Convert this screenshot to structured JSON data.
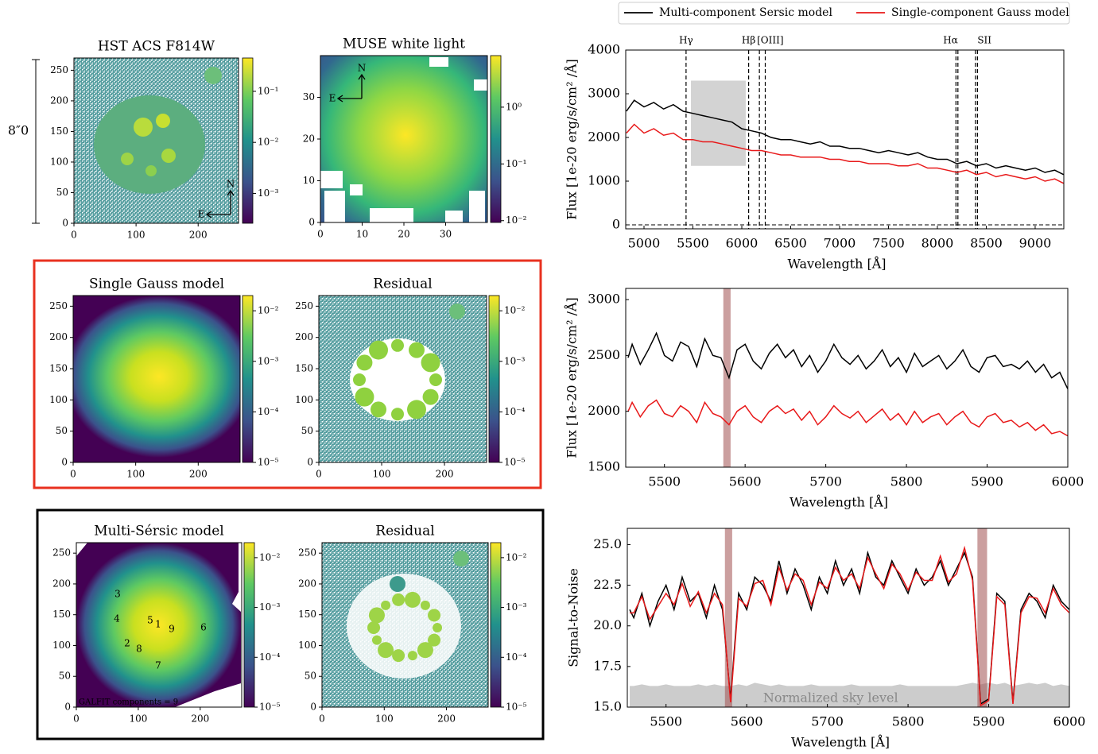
{
  "chart_data": [
    {
      "type": "image",
      "title": "HST ACS F814W",
      "xlim": [
        0,
        265
      ],
      "ylim": [
        0,
        270
      ],
      "xticks": [
        0,
        100,
        200
      ],
      "yticks": [
        0,
        50,
        100,
        150,
        200,
        250
      ],
      "clim": [
        0.00026,
        0.45
      ],
      "log_colorbar": true,
      "cticks": [
        {
          "value": 0.1,
          "label": "10⁻¹"
        },
        {
          "value": 0.01,
          "label": "10⁻²"
        },
        {
          "value": 0.001,
          "label": "10⁻³"
        }
      ],
      "compass": [
        "N",
        "E"
      ],
      "scale_label": "8″0"
    },
    {
      "type": "image",
      "title": "MUSE white light",
      "xlim": [
        0,
        40
      ],
      "ylim": [
        0,
        40
      ],
      "xticks": [
        0,
        10,
        20,
        30
      ],
      "yticks": [
        0,
        10,
        20,
        30
      ],
      "clim": [
        0.0093,
        8.1
      ],
      "log_colorbar": true,
      "cticks": [
        {
          "value": 1,
          "label": "10⁰"
        },
        {
          "value": 0.1,
          "label": "10⁻¹"
        },
        {
          "value": 0.01,
          "label": "10⁻²"
        }
      ],
      "compass": [
        "N",
        "E"
      ]
    },
    {
      "type": "image",
      "title": "Single Gauss model",
      "xlim": [
        0,
        267
      ],
      "ylim": [
        0,
        267
      ],
      "xticks": [
        0,
        100,
        200
      ],
      "yticks": [
        0,
        50,
        100,
        150,
        200,
        250
      ],
      "clim": [
        1e-05,
        0.02
      ],
      "log_colorbar": true,
      "cticks": [
        {
          "value": 0.01,
          "label": "10⁻²"
        },
        {
          "value": 0.001,
          "label": "10⁻³"
        },
        {
          "value": 0.0001,
          "label": "10⁻⁴"
        },
        {
          "value": 1e-05,
          "label": "10⁻⁵"
        }
      ]
    },
    {
      "type": "image",
      "title": "Residual",
      "xlim": [
        0,
        267
      ],
      "ylim": [
        0,
        267
      ],
      "xticks": [
        0,
        100,
        200
      ],
      "yticks": [
        0,
        50,
        100,
        150,
        200,
        250
      ],
      "clim": [
        1e-05,
        0.02
      ],
      "log_colorbar": true,
      "cticks": [
        {
          "value": 0.01,
          "label": "10⁻²"
        },
        {
          "value": 0.001,
          "label": "10⁻³"
        },
        {
          "value": 0.0001,
          "label": "10⁻⁴"
        },
        {
          "value": 1e-05,
          "label": "10⁻⁵"
        }
      ]
    },
    {
      "type": "image",
      "title": "Multi-Sérsic model",
      "xlim": [
        0,
        267
      ],
      "ylim": [
        0,
        267
      ],
      "xticks": [
        0,
        100,
        200
      ],
      "yticks": [
        0,
        50,
        100,
        150,
        200,
        250
      ],
      "clim": [
        1e-05,
        0.02
      ],
      "log_colorbar": true,
      "cticks": [
        {
          "value": 0.01,
          "label": "10⁻²"
        },
        {
          "value": 0.001,
          "label": "10⁻³"
        },
        {
          "value": 0.0001,
          "label": "10⁻⁴"
        },
        {
          "value": 1e-05,
          "label": "10⁻⁵"
        }
      ],
      "components": [
        "1",
        "2",
        "3",
        "4",
        "5",
        "6",
        "7",
        "8",
        "9"
      ],
      "note": "GALFIT components = 9"
    },
    {
      "type": "image",
      "title": "Residual",
      "xlim": [
        0,
        267
      ],
      "ylim": [
        0,
        267
      ],
      "xticks": [
        0,
        100,
        200
      ],
      "yticks": [
        0,
        50,
        100,
        150,
        200,
        250
      ],
      "clim": [
        1e-05,
        0.02
      ],
      "log_colorbar": true,
      "cticks": [
        {
          "value": 0.01,
          "label": "10⁻²"
        },
        {
          "value": 0.001,
          "label": "10⁻³"
        },
        {
          "value": 0.0001,
          "label": "10⁻⁴"
        },
        {
          "value": 1e-05,
          "label": "10⁻⁵"
        }
      ]
    },
    {
      "type": "line",
      "xlabel": "Wavelength [Å]",
      "ylabel": "Flux [1e-20 erg/s/cm² /Å]",
      "legend": "top",
      "xlim": [
        4813,
        9293
      ],
      "ylim": [
        -91,
        4000
      ],
      "xticks": [
        5000,
        5500,
        6000,
        6500,
        7000,
        7500,
        8000,
        8500,
        9000
      ],
      "yticks": [
        0,
        1000,
        2000,
        3000,
        4000
      ],
      "zoom_region": {
        "xlim": [
          5480,
          6040
        ],
        "ylim": [
          1350,
          3300
        ]
      },
      "lines": [
        {
          "label": "Hγ",
          "x": [
            5430
          ]
        },
        {
          "label": "Hβ",
          "x": [
            6070
          ]
        },
        {
          "label": "[OIII]",
          "x": [
            6180,
            6240
          ]
        },
        {
          "label": "Hα",
          "x": [
            8190,
            8210
          ]
        },
        {
          "label": "SII",
          "x": [
            8390,
            8410
          ]
        }
      ],
      "x": [
        4820,
        4900,
        5000,
        5100,
        5200,
        5300,
        5400,
        5500,
        5600,
        5700,
        5800,
        5900,
        6000,
        6100,
        6200,
        6300,
        6400,
        6500,
        6600,
        6700,
        6800,
        6900,
        7000,
        7100,
        7200,
        7300,
        7400,
        7500,
        7600,
        7700,
        7800,
        7900,
        8000,
        8100,
        8200,
        8300,
        8400,
        8500,
        8600,
        8700,
        8800,
        8900,
        9000,
        9100,
        9200,
        9290
      ],
      "series": [
        {
          "name": "Multi-component Sersic model",
          "color": "#000000",
          "values": [
            2600,
            2850,
            2700,
            2800,
            2650,
            2750,
            2600,
            2550,
            2500,
            2450,
            2400,
            2350,
            2200,
            2150,
            2100,
            2000,
            1950,
            1950,
            1900,
            1850,
            1900,
            1800,
            1800,
            1750,
            1750,
            1700,
            1650,
            1700,
            1650,
            1600,
            1650,
            1550,
            1500,
            1500,
            1400,
            1450,
            1350,
            1400,
            1300,
            1350,
            1300,
            1250,
            1300,
            1200,
            1250,
            1150
          ]
        },
        {
          "name": "Single-component Gauss model",
          "color": "#e8191a",
          "values": [
            2100,
            2300,
            2100,
            2200,
            2050,
            2100,
            1950,
            1950,
            1900,
            1900,
            1850,
            1800,
            1750,
            1700,
            1700,
            1650,
            1600,
            1600,
            1550,
            1550,
            1550,
            1500,
            1500,
            1450,
            1450,
            1400,
            1400,
            1400,
            1350,
            1350,
            1400,
            1300,
            1300,
            1250,
            1200,
            1250,
            1150,
            1200,
            1100,
            1150,
            1100,
            1050,
            1100,
            1000,
            1050,
            950
          ]
        }
      ]
    },
    {
      "type": "line",
      "xlabel": "Wavelength [Å]",
      "ylabel": "Flux [1e-20 erg/s/cm² /Å]",
      "xlim": [
        5452,
        6000
      ],
      "ylim": [
        1500,
        3100
      ],
      "xticks": [
        5500,
        5600,
        5700,
        5800,
        5900,
        6000
      ],
      "yticks": [
        1500,
        2000,
        2500,
        3000
      ],
      "masked": [
        [
          5573,
          5582
        ]
      ],
      "x": [
        5455,
        5460,
        5470,
        5480,
        5490,
        5500,
        5510,
        5520,
        5530,
        5540,
        5550,
        5560,
        5570,
        5580,
        5590,
        5600,
        5610,
        5620,
        5630,
        5640,
        5650,
        5660,
        5670,
        5680,
        5690,
        5700,
        5710,
        5720,
        5730,
        5740,
        5750,
        5760,
        5770,
        5780,
        5790,
        5800,
        5810,
        5820,
        5830,
        5840,
        5850,
        5860,
        5870,
        5880,
        5890,
        5900,
        5910,
        5920,
        5930,
        5940,
        5950,
        5960,
        5970,
        5980,
        5990,
        6000
      ],
      "series": [
        {
          "name": "Multi-component Sersic model",
          "color": "#000000",
          "values": [
            2480,
            2600,
            2420,
            2550,
            2700,
            2500,
            2450,
            2620,
            2580,
            2400,
            2650,
            2500,
            2480,
            2300,
            2550,
            2600,
            2450,
            2380,
            2520,
            2600,
            2480,
            2550,
            2400,
            2500,
            2350,
            2450,
            2600,
            2480,
            2420,
            2500,
            2380,
            2450,
            2550,
            2400,
            2480,
            2350,
            2520,
            2400,
            2450,
            2500,
            2380,
            2450,
            2550,
            2400,
            2350,
            2480,
            2500,
            2400,
            2420,
            2380,
            2450,
            2350,
            2420,
            2300,
            2350,
            2200
          ]
        },
        {
          "name": "Single-component Gauss model",
          "color": "#e8191a",
          "values": [
            2000,
            2080,
            1950,
            2050,
            2100,
            1980,
            1950,
            2050,
            2000,
            1900,
            2080,
            1980,
            1950,
            1880,
            2000,
            2050,
            1950,
            1900,
            2000,
            2050,
            1980,
            2020,
            1920,
            2000,
            1880,
            1950,
            2050,
            1980,
            1940,
            2000,
            1900,
            1960,
            2020,
            1920,
            1980,
            1880,
            2000,
            1900,
            1950,
            1980,
            1880,
            1950,
            2000,
            1900,
            1860,
            1950,
            1980,
            1900,
            1920,
            1860,
            1900,
            1830,
            1880,
            1800,
            1820,
            1780
          ]
        }
      ]
    },
    {
      "type": "line",
      "xlabel": "Wavelength [Å]",
      "ylabel": "Signal-to-Noise",
      "xlim": [
        5452,
        6000
      ],
      "ylim": [
        15,
        26
      ],
      "xticks": [
        5500,
        5600,
        5700,
        5800,
        5900,
        6000
      ],
      "yticks": [
        {
          "value": 15,
          "label": "15.0"
        },
        17.5,
        {
          "value": 20,
          "label": "20.0"
        },
        22.5,
        {
          "value": 25,
          "label": "25.0"
        }
      ],
      "masked": [
        [
          5573,
          5582
        ],
        [
          5886,
          5898
        ]
      ],
      "area": {
        "label": "Normalized sky level",
        "color": "#cccccc",
        "values": [
          16.3,
          16.3,
          16.4,
          16.3,
          16.3,
          16.4,
          16.3,
          16.3,
          16.3,
          16.4,
          16.3,
          16.4,
          16.3,
          16.3,
          16.4,
          16.3,
          16.5,
          16.4,
          16.3,
          16.4,
          16.3,
          16.3,
          16.3,
          16.4,
          16.3,
          16.3,
          16.3,
          16.3,
          16.4,
          16.3,
          16.3,
          16.3,
          16.3,
          16.3,
          16.4,
          16.3,
          16.3,
          16.3,
          16.3,
          16.3,
          16.3,
          16.3,
          16.4,
          16.5,
          16.4,
          16.5,
          16.4,
          16.5,
          16.3,
          16.4,
          16.5,
          16.4,
          16.5,
          16.3,
          16.4,
          16.3
        ]
      },
      "x": [
        5455,
        5460,
        5470,
        5480,
        5490,
        5500,
        5510,
        5520,
        5530,
        5540,
        5550,
        5560,
        5570,
        5580,
        5590,
        5600,
        5610,
        5620,
        5630,
        5640,
        5650,
        5660,
        5670,
        5680,
        5690,
        5700,
        5710,
        5720,
        5730,
        5740,
        5750,
        5760,
        5770,
        5780,
        5790,
        5800,
        5810,
        5820,
        5830,
        5840,
        5850,
        5860,
        5870,
        5880,
        5890,
        5900,
        5910,
        5920,
        5930,
        5940,
        5950,
        5960,
        5970,
        5980,
        5990,
        6000
      ],
      "series": [
        {
          "name": "Multi-component Sersic model",
          "color": "#000000",
          "values": [
            21.0,
            20.5,
            22.0,
            20.0,
            21.5,
            22.5,
            21.0,
            23.0,
            21.5,
            22.0,
            20.5,
            22.5,
            21.0,
            15.5,
            22.0,
            21.0,
            23.0,
            22.5,
            21.5,
            24.0,
            22.0,
            23.5,
            22.5,
            21.0,
            23.0,
            22.0,
            24.0,
            22.5,
            23.5,
            22.0,
            24.5,
            23.0,
            22.5,
            24.0,
            23.0,
            22.0,
            23.5,
            22.5,
            23.0,
            24.0,
            22.5,
            23.5,
            24.5,
            23.0,
            15.2,
            15.5,
            22.0,
            21.5,
            15.3,
            21.0,
            22.0,
            21.5,
            20.5,
            22.5,
            21.5,
            21.0
          ]
        },
        {
          "name": "Single-component Gauss model",
          "color": "#e8191a",
          "values": [
            20.8,
            20.8,
            21.8,
            20.4,
            21.2,
            22.0,
            21.3,
            22.6,
            21.2,
            22.1,
            20.8,
            22.0,
            21.3,
            15.3,
            21.7,
            21.2,
            22.6,
            22.8,
            21.3,
            23.6,
            22.2,
            23.2,
            22.8,
            21.3,
            22.7,
            22.3,
            23.6,
            22.8,
            23.2,
            22.3,
            24.2,
            23.2,
            22.3,
            23.8,
            23.2,
            22.2,
            23.3,
            22.8,
            22.8,
            24.3,
            22.7,
            23.2,
            24.8,
            22.8,
            15.1,
            15.4,
            21.8,
            21.3,
            15.2,
            20.8,
            21.8,
            21.7,
            20.8,
            22.3,
            21.3,
            20.8
          ]
        }
      ]
    }
  ]
}
